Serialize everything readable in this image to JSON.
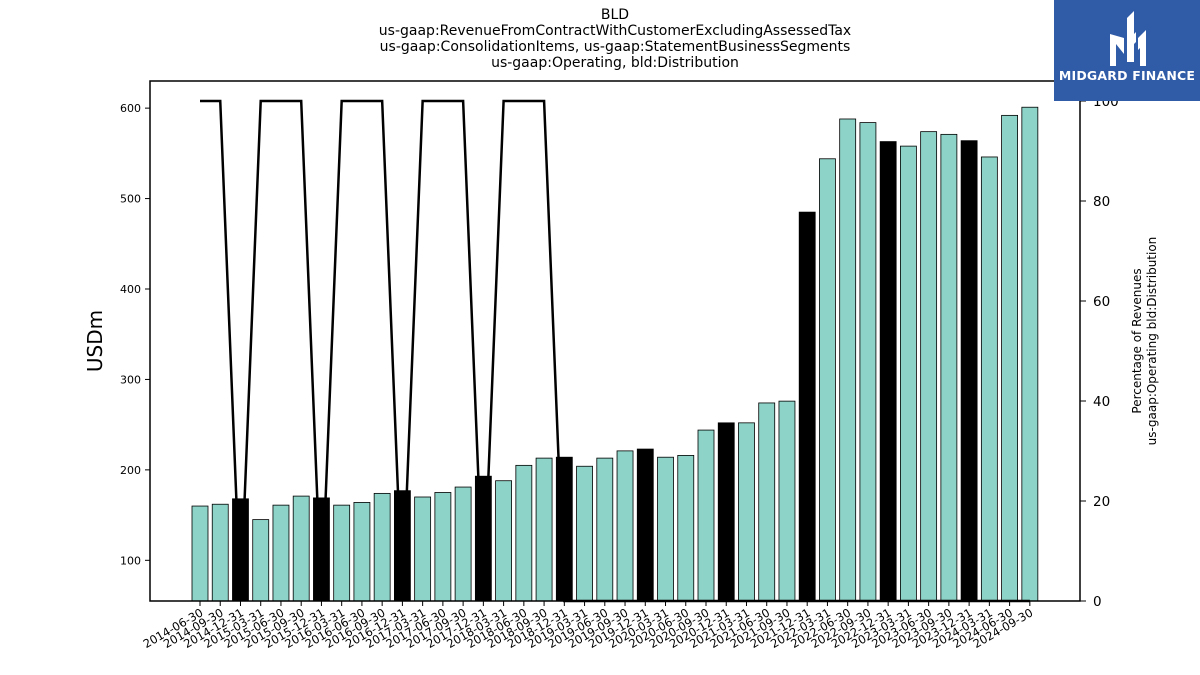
{
  "title": {
    "lines": [
      "BLD",
      "us-gaap:RevenueFromContractWithCustomerExcludingAssessedTax",
      "us-gaap:ConsolidationItems, us-gaap:StatementBusinessSegments",
      "us-gaap:Operating, bld:Distribution"
    ]
  },
  "logo": {
    "text": "MIDGARD FINANCE",
    "background": "#2f5ba7"
  },
  "colors": {
    "bar": "#8dd3c7",
    "highlight": "#000000",
    "line": "#000000"
  },
  "chart_data": {
    "type": "bar",
    "categories": [
      "2014-06-30",
      "2014-09-30",
      "2014-12-31",
      "2015-03-31",
      "2015-06-30",
      "2015-09-30",
      "2015-12-31",
      "2016-03-31",
      "2016-06-30",
      "2016-09-30",
      "2016-12-31",
      "2017-03-31",
      "2017-06-30",
      "2017-09-30",
      "2017-12-31",
      "2018-03-31",
      "2018-06-30",
      "2018-09-30",
      "2018-12-31",
      "2019-03-31",
      "2019-06-30",
      "2019-09-30",
      "2019-12-31",
      "2020-03-31",
      "2020-06-30",
      "2020-09-30",
      "2020-12-31",
      "2021-03-31",
      "2021-06-30",
      "2021-09-30",
      "2021-12-31",
      "2022-03-31",
      "2022-06-30",
      "2022-09-30",
      "2022-12-31",
      "2023-03-31",
      "2023-06-30",
      "2023-09-30",
      "2023-12-31",
      "2024-03-31",
      "2024-06-30",
      "2024-09-30"
    ],
    "series": [
      {
        "values": [
          160,
          162,
          168,
          145,
          161,
          171,
          169,
          161,
          164,
          174,
          177,
          170,
          175,
          181,
          193,
          188,
          205,
          213,
          214,
          204,
          213,
          221,
          223,
          214,
          216,
          244,
          252,
          252,
          274,
          276,
          485,
          544,
          588,
          584,
          563,
          558,
          574,
          571,
          564,
          546,
          592,
          601
        ],
        "highlight": [
          false,
          false,
          true,
          false,
          false,
          false,
          true,
          false,
          false,
          false,
          true,
          false,
          false,
          false,
          true,
          false,
          false,
          false,
          true,
          false,
          false,
          false,
          true,
          false,
          false,
          false,
          true,
          false,
          false,
          false,
          true,
          false,
          false,
          false,
          true,
          false,
          false,
          false,
          true,
          false,
          false,
          false
        ],
        "axis": "left"
      },
      {
        "type": "line",
        "values": [
          100,
          100,
          0,
          100,
          100,
          100,
          0,
          100,
          100,
          100,
          0,
          100,
          100,
          100,
          0,
          100,
          100,
          100,
          0,
          0,
          0,
          0,
          0,
          0,
          0,
          0,
          0,
          0,
          0,
          0,
          0,
          0,
          0,
          0,
          0,
          0,
          0,
          0,
          0,
          0,
          0,
          0
        ],
        "axis": "right"
      }
    ],
    "xlabel": "",
    "ylabel": "USDm",
    "y2label": [
      "Percentage of Revenues",
      "us-gaap:Operating bld:Distribution"
    ],
    "ylim": [
      55,
      630
    ],
    "y2lim": [
      0,
      104
    ],
    "yticks": [
      100,
      200,
      300,
      400,
      500,
      600
    ],
    "y2ticks": [
      0,
      20,
      40,
      60,
      80,
      100
    ],
    "grid": false,
    "legend": "none"
  }
}
